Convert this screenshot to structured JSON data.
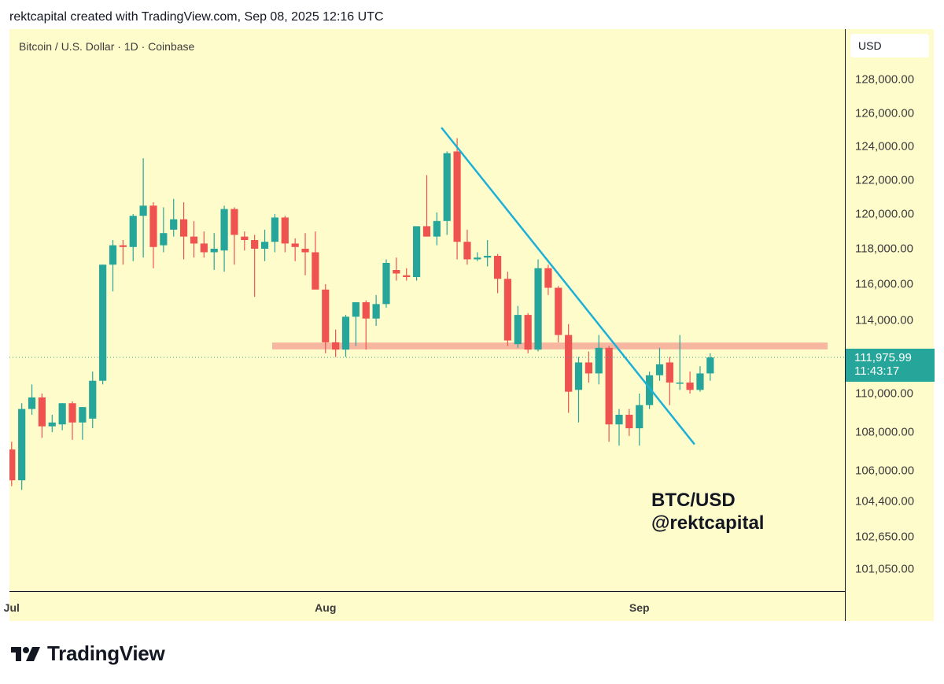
{
  "header": {
    "attribution": "rektcapital created with TradingView.com, Sep 08, 2025 12:16 UTC"
  },
  "chart": {
    "symbol_label": "Bitcoin / U.S. Dollar · 1D · Coinbase",
    "currency": "USD",
    "last_price_label": "111,975.99",
    "countdown_label": "11:43:17",
    "annotation_line1": "BTC/USD",
    "annotation_line2": "@rektcapital"
  },
  "footer": {
    "brand": "TradingView"
  },
  "colors": {
    "background": "#fffccc",
    "up": "#26a69a",
    "down": "#ef5350",
    "trendline": "#1cb0d8",
    "support_zone": "#f4a996",
    "price_line": "#26a69a"
  },
  "chart_data": {
    "type": "candlestick",
    "title": "Bitcoin / U.S. Dollar · 1D · Coinbase",
    "y_ticks": [
      {
        "value": 128000,
        "label": "128,000.00"
      },
      {
        "value": 126000,
        "label": "126,000.00"
      },
      {
        "value": 124000,
        "label": "124,000.00"
      },
      {
        "value": 122000,
        "label": "122,000.00"
      },
      {
        "value": 120000,
        "label": "120,000.00"
      },
      {
        "value": 118000,
        "label": "118,000.00"
      },
      {
        "value": 116000,
        "label": "116,000.00"
      },
      {
        "value": 114000,
        "label": "114,000.00"
      },
      {
        "value": 110000,
        "label": "110,000.00"
      },
      {
        "value": 108000,
        "label": "108,000.00"
      },
      {
        "value": 106000,
        "label": "106,000.00"
      },
      {
        "value": 104400,
        "label": "104,400.00"
      },
      {
        "value": 102650,
        "label": "102,650.00"
      },
      {
        "value": 101050,
        "label": "101,050.00"
      }
    ],
    "x_ticks": [
      {
        "index": 0,
        "label": "Jul"
      },
      {
        "index": 31,
        "label": "Aug"
      },
      {
        "index": 62,
        "label": "Sep"
      }
    ],
    "last_price": 111975.99,
    "support_zone": [
      112500,
      112700
    ],
    "trendline": [
      {
        "index": 42.5,
        "value": 125100
      },
      {
        "index": 67.4,
        "value": 107400
      }
    ],
    "candles": [
      {
        "o": 107100,
        "h": 107500,
        "l": 105200,
        "c": 105500
      },
      {
        "o": 105500,
        "h": 109500,
        "l": 105000,
        "c": 109200
      },
      {
        "o": 109200,
        "h": 110500,
        "l": 108900,
        "c": 109800
      },
      {
        "o": 109800,
        "h": 110000,
        "l": 107700,
        "c": 108300
      },
      {
        "o": 108300,
        "h": 108900,
        "l": 108000,
        "c": 108500
      },
      {
        "o": 108400,
        "h": 109500,
        "l": 108100,
        "c": 109500
      },
      {
        "o": 109500,
        "h": 109600,
        "l": 107600,
        "c": 108500
      },
      {
        "o": 108500,
        "h": 109300,
        "l": 107600,
        "c": 109300
      },
      {
        "o": 108700,
        "h": 111200,
        "l": 108200,
        "c": 110700
      },
      {
        "o": 110700,
        "h": 117100,
        "l": 110500,
        "c": 117100
      },
      {
        "o": 117100,
        "h": 118500,
        "l": 115600,
        "c": 118200
      },
      {
        "o": 118200,
        "h": 118500,
        "l": 117100,
        "c": 118100
      },
      {
        "o": 118100,
        "h": 120000,
        "l": 117300,
        "c": 119900
      },
      {
        "o": 119900,
        "h": 123300,
        "l": 117500,
        "c": 120500
      },
      {
        "o": 120500,
        "h": 120700,
        "l": 116900,
        "c": 118100
      },
      {
        "o": 118200,
        "h": 120400,
        "l": 117800,
        "c": 118900
      },
      {
        "o": 119100,
        "h": 120900,
        "l": 118700,
        "c": 119700
      },
      {
        "o": 119700,
        "h": 120700,
        "l": 117400,
        "c": 118700
      },
      {
        "o": 118700,
        "h": 119600,
        "l": 117500,
        "c": 118300
      },
      {
        "o": 118300,
        "h": 119000,
        "l": 117500,
        "c": 117800
      },
      {
        "o": 117800,
        "h": 118900,
        "l": 116800,
        "c": 118000
      },
      {
        "o": 117900,
        "h": 120500,
        "l": 116700,
        "c": 120300
      },
      {
        "o": 120300,
        "h": 120400,
        "l": 117100,
        "c": 118800
      },
      {
        "o": 118700,
        "h": 119000,
        "l": 117900,
        "c": 118500
      },
      {
        "o": 118500,
        "h": 118800,
        "l": 115300,
        "c": 118000
      },
      {
        "o": 118000,
        "h": 119100,
        "l": 117300,
        "c": 118400
      },
      {
        "o": 118400,
        "h": 120000,
        "l": 117800,
        "c": 119800
      },
      {
        "o": 119800,
        "h": 119900,
        "l": 117800,
        "c": 118300
      },
      {
        "o": 118300,
        "h": 118600,
        "l": 117300,
        "c": 118100
      },
      {
        "o": 118000,
        "h": 118900,
        "l": 116500,
        "c": 117800
      },
      {
        "o": 117800,
        "h": 119000,
        "l": 115800,
        "c": 115700
      },
      {
        "o": 115700,
        "h": 116000,
        "l": 112200,
        "c": 112800
      },
      {
        "o": 112800,
        "h": 113500,
        "l": 112000,
        "c": 112400
      },
      {
        "o": 112400,
        "h": 114300,
        "l": 112000,
        "c": 114200
      },
      {
        "o": 114200,
        "h": 115000,
        "l": 112600,
        "c": 115000
      },
      {
        "o": 115000,
        "h": 115100,
        "l": 112400,
        "c": 114100
      },
      {
        "o": 114100,
        "h": 115400,
        "l": 113700,
        "c": 114900
      },
      {
        "o": 114900,
        "h": 117400,
        "l": 114700,
        "c": 117200
      },
      {
        "o": 116800,
        "h": 117500,
        "l": 116200,
        "c": 116600
      },
      {
        "o": 116500,
        "h": 116900,
        "l": 116200,
        "c": 116400
      },
      {
        "o": 116400,
        "h": 119300,
        "l": 116200,
        "c": 119300
      },
      {
        "o": 119300,
        "h": 122300,
        "l": 118700,
        "c": 118700
      },
      {
        "o": 118700,
        "h": 120100,
        "l": 118200,
        "c": 119600
      },
      {
        "o": 119600,
        "h": 123700,
        "l": 118800,
        "c": 123600
      },
      {
        "o": 123700,
        "h": 124500,
        "l": 117400,
        "c": 118400
      },
      {
        "o": 118400,
        "h": 119100,
        "l": 117100,
        "c": 117400
      },
      {
        "o": 117400,
        "h": 117800,
        "l": 117300,
        "c": 117500
      },
      {
        "o": 117500,
        "h": 118500,
        "l": 117000,
        "c": 117600
      },
      {
        "o": 117600,
        "h": 117700,
        "l": 115500,
        "c": 116300
      },
      {
        "o": 116300,
        "h": 116700,
        "l": 112600,
        "c": 112900
      },
      {
        "o": 112700,
        "h": 114800,
        "l": 112500,
        "c": 114300
      },
      {
        "o": 114300,
        "h": 114400,
        "l": 112200,
        "c": 112400
      },
      {
        "o": 112400,
        "h": 117400,
        "l": 112300,
        "c": 116900
      },
      {
        "o": 116900,
        "h": 117100,
        "l": 115400,
        "c": 115800
      },
      {
        "o": 115800,
        "h": 115900,
        "l": 112800,
        "c": 113200
      },
      {
        "o": 113200,
        "h": 113800,
        "l": 109000,
        "c": 110100
      },
      {
        "o": 110200,
        "h": 112000,
        "l": 108500,
        "c": 111700
      },
      {
        "o": 111700,
        "h": 112300,
        "l": 110600,
        "c": 111100
      },
      {
        "o": 111100,
        "h": 113200,
        "l": 110500,
        "c": 112500
      },
      {
        "o": 112500,
        "h": 112600,
        "l": 107500,
        "c": 108400
      },
      {
        "o": 108400,
        "h": 109200,
        "l": 107300,
        "c": 108900
      },
      {
        "o": 108900,
        "h": 109200,
        "l": 107800,
        "c": 108200
      },
      {
        "o": 108200,
        "h": 110000,
        "l": 107300,
        "c": 109400
      },
      {
        "o": 109400,
        "h": 111200,
        "l": 109200,
        "c": 111000
      },
      {
        "o": 111000,
        "h": 112500,
        "l": 110700,
        "c": 111600
      },
      {
        "o": 111700,
        "h": 112000,
        "l": 109400,
        "c": 110600
      },
      {
        "o": 110600,
        "h": 113200,
        "l": 110200,
        "c": 110600
      },
      {
        "o": 110600,
        "h": 111200,
        "l": 110000,
        "c": 110200
      },
      {
        "o": 110200,
        "h": 111500,
        "l": 110100,
        "c": 111100
      },
      {
        "o": 111100,
        "h": 112200,
        "l": 110700,
        "c": 111976
      }
    ]
  }
}
